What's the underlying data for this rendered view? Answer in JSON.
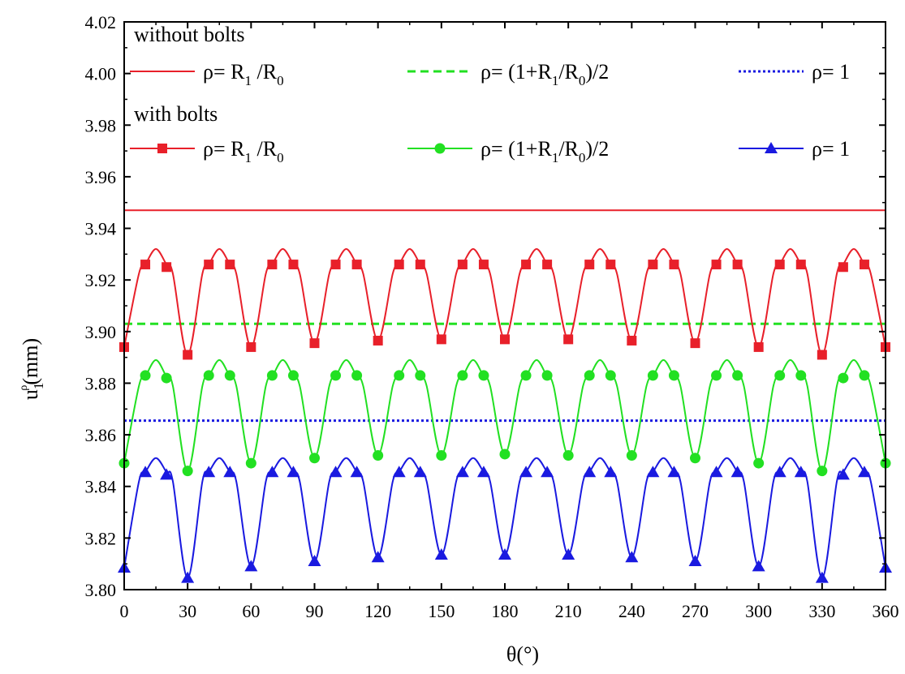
{
  "chart_data": {
    "type": "line",
    "title": "",
    "xlabel": "θ(°)",
    "ylabel_main": "u",
    "ylabel_sub": "1",
    "ylabel_sup": "ρ",
    "ylabel_tail": "(mm)",
    "xlim": [
      0,
      360
    ],
    "ylim": [
      3.8,
      4.02
    ],
    "x_ticks": [
      0,
      30,
      60,
      90,
      120,
      150,
      180,
      210,
      240,
      270,
      300,
      330,
      360
    ],
    "x_tick_labels": [
      "0",
      "30",
      "60",
      "90",
      "120",
      "150",
      "180",
      "210",
      "240",
      "270",
      "300",
      "330",
      "360"
    ],
    "y_ticks": [
      3.8,
      3.82,
      3.84,
      3.86,
      3.88,
      3.9,
      3.92,
      3.94,
      3.96,
      3.98,
      4.0,
      4.02
    ],
    "y_tick_labels": [
      "3.80",
      "3.82",
      "3.84",
      "3.86",
      "3.88",
      "3.90",
      "3.92",
      "3.94",
      "3.96",
      "3.98",
      "4.00",
      "4.02"
    ],
    "legend_headers": {
      "without": "without bolts",
      "with": "with bolts"
    },
    "constant_series": [
      {
        "name": "without bolts ρ= R1 /R0",
        "y": 3.947,
        "color": "#e8202a",
        "style": "solid"
      },
      {
        "name": "without bolts ρ= (1+R1/R0)/2",
        "y": 3.903,
        "color": "#22e022",
        "style": "dashed"
      },
      {
        "name": "without bolts ρ= 1",
        "y": 3.8655,
        "color": "#1a1ae0",
        "style": "dotted"
      }
    ],
    "marker_x": [
      0,
      10,
      20,
      30,
      40,
      50,
      60,
      70,
      80,
      90,
      100,
      110,
      120,
      130,
      140,
      150,
      160,
      170,
      180,
      190,
      200,
      210,
      220,
      230,
      240,
      250,
      260,
      270,
      280,
      290,
      300,
      310,
      320,
      330,
      340,
      350,
      360
    ],
    "bolt_series": [
      {
        "name": "with bolts ρ= R1 /R0",
        "color": "#e8202a",
        "marker": "square",
        "peak": 3.932,
        "high": 3.926,
        "troughs": [
          3.894,
          3.891,
          3.894,
          3.8955,
          3.8965,
          3.897,
          3.897,
          3.897,
          3.8965,
          3.8955,
          3.894,
          3.891,
          3.894
        ],
        "values": [
          3.894,
          3.926,
          3.925,
          3.891,
          3.926,
          3.926,
          3.894,
          3.926,
          3.926,
          3.8955,
          3.926,
          3.926,
          3.8965,
          3.926,
          3.926,
          3.897,
          3.926,
          3.926,
          3.897,
          3.926,
          3.926,
          3.897,
          3.926,
          3.926,
          3.8965,
          3.926,
          3.926,
          3.8955,
          3.926,
          3.926,
          3.894,
          3.926,
          3.926,
          3.891,
          3.925,
          3.926,
          3.894
        ]
      },
      {
        "name": "with bolts ρ= (1+R1/R0)/2",
        "color": "#22e022",
        "marker": "circle",
        "peak": 3.889,
        "high": 3.8825,
        "troughs": [
          3.849,
          3.846,
          3.849,
          3.851,
          3.852,
          3.852,
          3.8525,
          3.852,
          3.852,
          3.851,
          3.849,
          3.846,
          3.849
        ],
        "values": [
          3.849,
          3.883,
          3.882,
          3.846,
          3.883,
          3.883,
          3.849,
          3.883,
          3.883,
          3.851,
          3.883,
          3.883,
          3.852,
          3.883,
          3.883,
          3.852,
          3.883,
          3.883,
          3.8525,
          3.883,
          3.883,
          3.852,
          3.883,
          3.883,
          3.852,
          3.883,
          3.883,
          3.851,
          3.883,
          3.883,
          3.849,
          3.883,
          3.883,
          3.846,
          3.882,
          3.883,
          3.849
        ]
      },
      {
        "name": "with bolts ρ= 1",
        "color": "#1a1ae0",
        "marker": "triangle",
        "peak": 3.851,
        "high": 3.8455,
        "troughs": [
          3.8085,
          3.8045,
          3.809,
          3.811,
          3.8125,
          3.8135,
          3.8135,
          3.8135,
          3.8125,
          3.811,
          3.809,
          3.8045,
          3.8085
        ],
        "values": [
          3.8085,
          3.8455,
          3.8445,
          3.8045,
          3.8455,
          3.8455,
          3.809,
          3.8455,
          3.8455,
          3.811,
          3.8455,
          3.8455,
          3.8125,
          3.8455,
          3.8455,
          3.8135,
          3.8455,
          3.8455,
          3.8135,
          3.8455,
          3.8455,
          3.8135,
          3.8455,
          3.8455,
          3.8125,
          3.8455,
          3.8455,
          3.811,
          3.8455,
          3.8455,
          3.809,
          3.8455,
          3.8455,
          3.8045,
          3.8445,
          3.8455,
          3.8085
        ]
      }
    ],
    "legend_entries": [
      {
        "group": "without",
        "color": "#e8202a",
        "style": "solid",
        "marker": "none",
        "label": {
          "p": "ρ= R",
          "s1": "1",
          "m": " /R",
          "s2": "0",
          "e": ""
        }
      },
      {
        "group": "without",
        "color": "#22e022",
        "style": "dashed",
        "marker": "none",
        "label": {
          "p": "ρ= (1+R",
          "s1": "1",
          "m": "/R",
          "s2": "0",
          "e": ")/2"
        }
      },
      {
        "group": "without",
        "color": "#1a1ae0",
        "style": "dotted",
        "marker": "none",
        "label": {
          "p": "ρ= 1",
          "s1": "",
          "m": "",
          "s2": "",
          "e": ""
        }
      },
      {
        "group": "with",
        "color": "#e8202a",
        "style": "solid",
        "marker": "square",
        "label": {
          "p": "ρ= R",
          "s1": "1",
          "m": " /R",
          "s2": "0",
          "e": ""
        }
      },
      {
        "group": "with",
        "color": "#22e022",
        "style": "solid",
        "marker": "circle",
        "label": {
          "p": "ρ= (1+R",
          "s1": "1",
          "m": "/R",
          "s2": "0",
          "e": ")/2"
        }
      },
      {
        "group": "with",
        "color": "#1a1ae0",
        "style": "solid",
        "marker": "triangle",
        "label": {
          "p": "ρ= 1",
          "s1": "",
          "m": "",
          "s2": "",
          "e": ""
        }
      }
    ]
  }
}
